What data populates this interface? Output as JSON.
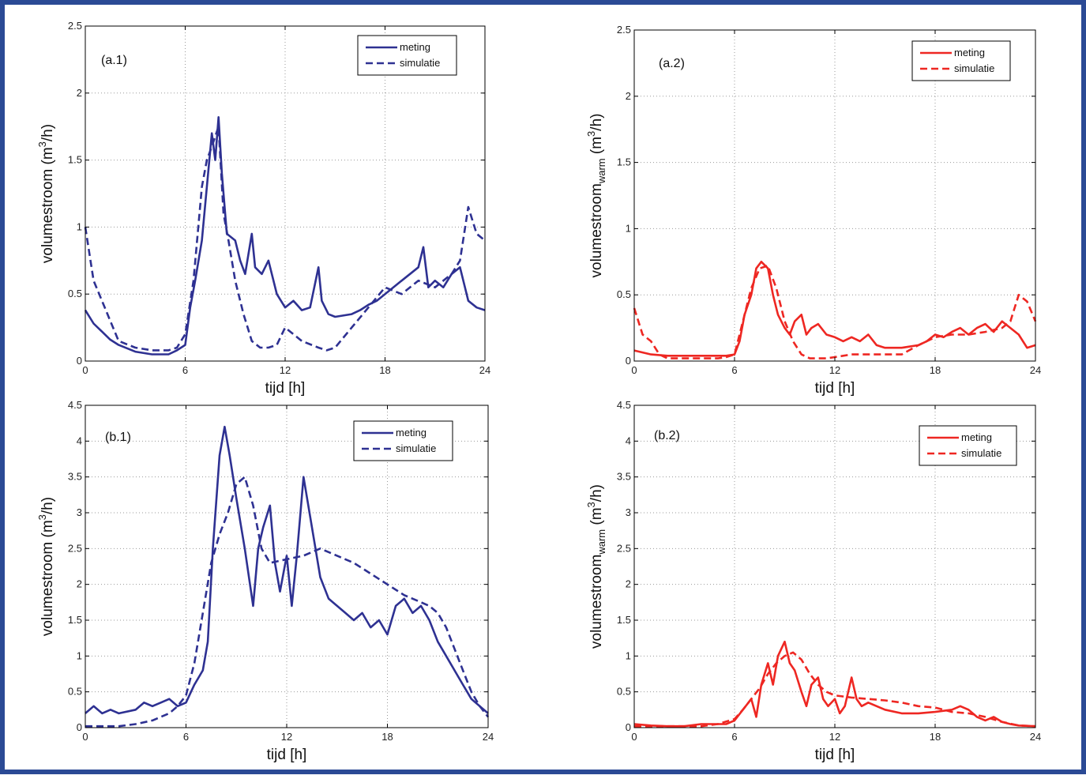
{
  "chart_data": [
    {
      "type": "line",
      "panel_label": "(a.1)",
      "xlabel": "tijd [h]",
      "ylabel": "volumestroom (m³/h)",
      "ylabel_base": "volumestroom (m",
      "ylabel_sup": "3",
      "ylabel_tail": "/h)",
      "xlim": [
        0,
        24
      ],
      "ylim": [
        0,
        2.5
      ],
      "xticks": [
        0,
        6,
        12,
        18,
        24
      ],
      "yticks": [
        0,
        0.5,
        1,
        1.5,
        2,
        2.5
      ],
      "grid": true,
      "legend_position": "top-right",
      "color": "#2e3192",
      "series": [
        {
          "name": "meting",
          "style": "solid",
          "x": [
            0,
            0.5,
            1,
            1.5,
            2,
            3,
            4,
            5,
            5.5,
            6,
            6.3,
            6.6,
            7,
            7.3,
            7.6,
            7.8,
            8,
            8.2,
            8.5,
            9,
            9.3,
            9.6,
            10,
            10.2,
            10.6,
            11,
            11.5,
            12,
            12.5,
            13,
            13.5,
            14,
            14.2,
            14.6,
            15,
            16,
            16.5,
            17,
            17.5,
            18,
            18.5,
            19,
            19.5,
            20,
            20.3,
            20.6,
            21,
            21.5,
            22,
            22.5,
            23,
            23.5,
            24
          ],
          "y": [
            0.38,
            0.28,
            0.22,
            0.16,
            0.12,
            0.07,
            0.05,
            0.05,
            0.08,
            0.12,
            0.4,
            0.6,
            0.9,
            1.3,
            1.7,
            1.5,
            1.82,
            1.4,
            0.95,
            0.9,
            0.75,
            0.65,
            0.95,
            0.7,
            0.65,
            0.75,
            0.5,
            0.4,
            0.45,
            0.38,
            0.4,
            0.7,
            0.45,
            0.35,
            0.33,
            0.35,
            0.38,
            0.42,
            0.45,
            0.5,
            0.55,
            0.6,
            0.65,
            0.7,
            0.85,
            0.55,
            0.6,
            0.55,
            0.65,
            0.7,
            0.45,
            0.4,
            0.38
          ]
        },
        {
          "name": "simulatie",
          "style": "dashed",
          "x": [
            0,
            0.5,
            1,
            1.5,
            2,
            3,
            4,
            5,
            5.5,
            6,
            6.5,
            7,
            7.3,
            7.6,
            8,
            8.3,
            8.6,
            9,
            9.5,
            10,
            10.5,
            11,
            11.5,
            12,
            13,
            14,
            14.5,
            15,
            16,
            17,
            18,
            19,
            20,
            21,
            22,
            22.5,
            23,
            23.5,
            24
          ],
          "y": [
            1.0,
            0.6,
            0.45,
            0.3,
            0.15,
            0.1,
            0.08,
            0.08,
            0.1,
            0.2,
            0.6,
            1.3,
            1.5,
            1.6,
            1.75,
            1.1,
            0.9,
            0.6,
            0.35,
            0.15,
            0.1,
            0.1,
            0.12,
            0.25,
            0.15,
            0.1,
            0.08,
            0.1,
            0.25,
            0.4,
            0.55,
            0.5,
            0.6,
            0.55,
            0.65,
            0.75,
            1.15,
            0.95,
            0.9
          ]
        }
      ]
    },
    {
      "type": "line",
      "panel_label": "(a.2)",
      "xlabel": "tijd [h]",
      "ylabel": "volumestroom_warm (m³/h)",
      "ylabel_base": "volumestroom",
      "ylabel_sub": "warm",
      "ylabel_tail_pre": " (m",
      "ylabel_sup": "3",
      "ylabel_tail": "/h)",
      "xlim": [
        0,
        24
      ],
      "ylim": [
        0,
        2.5
      ],
      "xticks": [
        0,
        6,
        12,
        18,
        24
      ],
      "yticks": [
        0,
        0.5,
        1,
        1.5,
        2,
        2.5
      ],
      "grid": true,
      "legend_position": "top-right",
      "color": "#ee2722",
      "series": [
        {
          "name": "meting",
          "style": "solid",
          "x": [
            0,
            1,
            2,
            3,
            4,
            5,
            5.5,
            6,
            6.3,
            6.6,
            7,
            7.3,
            7.6,
            8,
            8.3,
            8.6,
            9,
            9.3,
            9.6,
            10,
            10.3,
            10.6,
            11,
            11.5,
            12,
            12.5,
            13,
            13.5,
            14,
            14.5,
            15,
            16,
            17,
            17.5,
            18,
            18.5,
            19,
            19.5,
            20,
            20.5,
            21,
            21.5,
            22,
            22.5,
            23,
            23.5,
            24
          ],
          "y": [
            0.08,
            0.05,
            0.04,
            0.04,
            0.04,
            0.04,
            0.04,
            0.05,
            0.15,
            0.35,
            0.5,
            0.7,
            0.75,
            0.7,
            0.5,
            0.35,
            0.25,
            0.2,
            0.3,
            0.35,
            0.2,
            0.25,
            0.28,
            0.2,
            0.18,
            0.15,
            0.18,
            0.15,
            0.2,
            0.12,
            0.1,
            0.1,
            0.12,
            0.15,
            0.2,
            0.18,
            0.22,
            0.25,
            0.2,
            0.25,
            0.28,
            0.22,
            0.3,
            0.25,
            0.2,
            0.1,
            0.12
          ]
        },
        {
          "name": "simulatie",
          "style": "dashed",
          "x": [
            0,
            0.5,
            1,
            1.5,
            2,
            3,
            4,
            5,
            5.5,
            6,
            6.5,
            7,
            7.5,
            8,
            8.5,
            9,
            9.5,
            10,
            10.5,
            11,
            11.5,
            12,
            13,
            14,
            15,
            16,
            17,
            18,
            19,
            20,
            21,
            22,
            22.5,
            23,
            23.5,
            24
          ],
          "y": [
            0.4,
            0.2,
            0.15,
            0.05,
            0.02,
            0.02,
            0.02,
            0.02,
            0.03,
            0.05,
            0.3,
            0.55,
            0.7,
            0.72,
            0.55,
            0.3,
            0.15,
            0.05,
            0.02,
            0.02,
            0.02,
            0.03,
            0.05,
            0.05,
            0.05,
            0.05,
            0.12,
            0.18,
            0.2,
            0.2,
            0.22,
            0.25,
            0.3,
            0.5,
            0.45,
            0.3
          ]
        }
      ]
    },
    {
      "type": "line",
      "panel_label": "(b.1)",
      "xlabel": "tijd [h]",
      "ylabel": "volumestroom (m³/h)",
      "ylabel_base": "volumestroom (m",
      "ylabel_sup": "3",
      "ylabel_tail": "/h)",
      "xlim": [
        0,
        24
      ],
      "ylim": [
        0,
        4.5
      ],
      "xticks": [
        0,
        6,
        12,
        18,
        24
      ],
      "yticks": [
        0,
        0.5,
        1,
        1.5,
        2,
        2.5,
        3,
        3.5,
        4,
        4.5
      ],
      "grid": true,
      "legend_position": "top-right",
      "color": "#2e3192",
      "series": [
        {
          "name": "meting",
          "style": "solid",
          "x": [
            0,
            0.5,
            1,
            1.5,
            2,
            3,
            3.5,
            4,
            4.5,
            5,
            5.5,
            6,
            6.5,
            7,
            7.3,
            7.6,
            8,
            8.3,
            8.6,
            9,
            9.5,
            10,
            10.3,
            10.6,
            11,
            11.3,
            11.6,
            12,
            12.3,
            12.6,
            13,
            13.5,
            14,
            14.5,
            15,
            15.5,
            16,
            16.5,
            17,
            17.5,
            18,
            18.5,
            19,
            19.5,
            20,
            20.5,
            21,
            21.5,
            22,
            22.5,
            23,
            23.5,
            24
          ],
          "y": [
            0.2,
            0.3,
            0.2,
            0.25,
            0.2,
            0.25,
            0.35,
            0.3,
            0.35,
            0.4,
            0.3,
            0.35,
            0.6,
            0.8,
            1.2,
            2.5,
            3.8,
            4.2,
            3.8,
            3.2,
            2.5,
            1.7,
            2.5,
            2.8,
            3.1,
            2.3,
            1.9,
            2.4,
            1.7,
            2.4,
            3.5,
            2.8,
            2.1,
            1.8,
            1.7,
            1.6,
            1.5,
            1.6,
            1.4,
            1.5,
            1.3,
            1.7,
            1.8,
            1.6,
            1.7,
            1.5,
            1.2,
            1.0,
            0.8,
            0.6,
            0.4,
            0.3,
            0.2
          ]
        },
        {
          "name": "simulatie",
          "style": "dashed",
          "x": [
            0,
            1,
            2,
            3,
            4,
            5,
            5.5,
            6,
            6.5,
            7,
            7.5,
            8,
            8.5,
            9,
            9.5,
            10,
            10.5,
            11,
            12,
            13,
            14,
            15,
            16,
            17,
            18,
            19,
            20,
            20.5,
            21,
            21.5,
            22,
            22.5,
            23,
            23.5,
            24
          ],
          "y": [
            0.02,
            0.02,
            0.02,
            0.05,
            0.1,
            0.2,
            0.3,
            0.45,
            0.9,
            1.6,
            2.3,
            2.7,
            3.0,
            3.4,
            3.5,
            3.1,
            2.5,
            2.3,
            2.35,
            2.4,
            2.5,
            2.4,
            2.3,
            2.15,
            2.0,
            1.85,
            1.75,
            1.7,
            1.6,
            1.4,
            1.1,
            0.8,
            0.5,
            0.3,
            0.15
          ]
        }
      ]
    },
    {
      "type": "line",
      "panel_label": "(b.2)",
      "xlabel": "tijd [h]",
      "ylabel": "volumestroom_warm (m³/h)",
      "ylabel_base": "volumestroom",
      "ylabel_sub": "warm",
      "ylabel_tail_pre": " (m",
      "ylabel_sup": "3",
      "ylabel_tail": "/h)",
      "xlim": [
        0,
        24
      ],
      "ylim": [
        0,
        4.5
      ],
      "xticks": [
        0,
        6,
        12,
        18,
        24
      ],
      "yticks": [
        0,
        0.5,
        1,
        1.5,
        2,
        2.5,
        3,
        3.5,
        4,
        4.5
      ],
      "grid": true,
      "legend_position": "top-right",
      "color": "#ee2722",
      "series": [
        {
          "name": "meting",
          "style": "solid",
          "x": [
            0,
            1,
            2,
            3,
            4,
            5,
            5.5,
            6,
            6.5,
            7,
            7.3,
            7.6,
            8,
            8.3,
            8.6,
            9,
            9.3,
            9.6,
            10,
            10.3,
            10.6,
            11,
            11.3,
            11.6,
            12,
            12.3,
            12.6,
            13,
            13.3,
            13.6,
            14,
            15,
            16,
            17,
            18,
            19,
            19.5,
            20,
            20.5,
            21,
            21.5,
            22,
            22.5,
            23,
            24
          ],
          "y": [
            0.05,
            0.03,
            0.02,
            0.02,
            0.05,
            0.05,
            0.05,
            0.1,
            0.25,
            0.4,
            0.15,
            0.6,
            0.9,
            0.6,
            1.0,
            1.2,
            0.9,
            0.8,
            0.5,
            0.3,
            0.6,
            0.7,
            0.4,
            0.3,
            0.4,
            0.2,
            0.3,
            0.7,
            0.4,
            0.3,
            0.35,
            0.25,
            0.2,
            0.2,
            0.22,
            0.25,
            0.3,
            0.25,
            0.15,
            0.1,
            0.15,
            0.08,
            0.05,
            0.03,
            0.02
          ]
        },
        {
          "name": "simulatie",
          "style": "dashed",
          "x": [
            0,
            1,
            2,
            3,
            4,
            5,
            6,
            6.5,
            7,
            7.5,
            8,
            8.5,
            9,
            9.5,
            10,
            10.5,
            11,
            11.5,
            12,
            13,
            14,
            15,
            16,
            17,
            18,
            19,
            20,
            21,
            22,
            23,
            24
          ],
          "y": [
            0.02,
            0.02,
            0.02,
            0.02,
            0.02,
            0.05,
            0.12,
            0.25,
            0.4,
            0.55,
            0.75,
            0.9,
            1.0,
            1.05,
            0.95,
            0.75,
            0.6,
            0.5,
            0.45,
            0.42,
            0.4,
            0.38,
            0.35,
            0.3,
            0.28,
            0.22,
            0.2,
            0.15,
            0.08,
            0.03,
            0.02
          ]
        }
      ]
    }
  ]
}
